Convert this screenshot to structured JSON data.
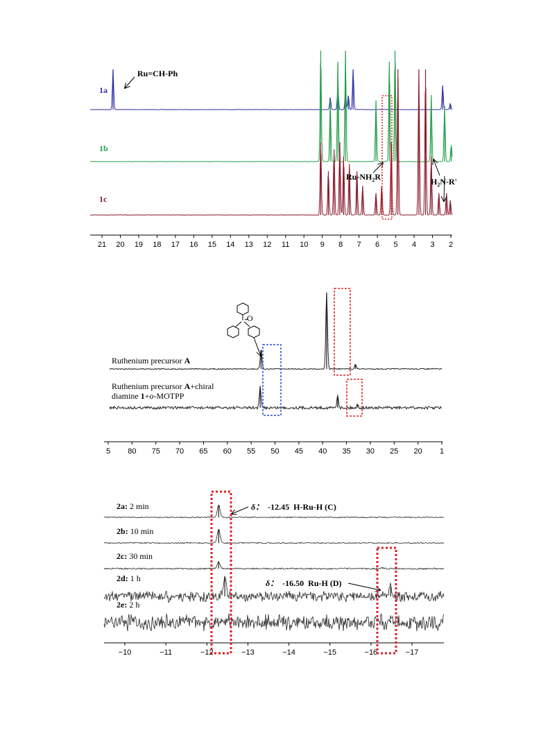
{
  "chart_data": [
    {
      "type": "line",
      "xlim": [
        21,
        2
      ],
      "ticks": [
        "21",
        "20",
        "19",
        "18",
        "17",
        "16",
        "15",
        "14",
        "13",
        "12",
        "11",
        "10",
        "9",
        "8",
        "7",
        "6",
        "5",
        "4",
        "3",
        "2"
      ],
      "series": [
        {
          "name": "1a",
          "color": "#2e31a6",
          "peaks": [
            [
              19.8,
              1.0
            ],
            [
              8.4,
              0.3
            ],
            [
              8.0,
              0.55
            ],
            [
              7.6,
              0.45
            ],
            [
              7.45,
              0.35
            ],
            [
              7.2,
              1.0
            ],
            [
              2.5,
              0.6
            ],
            [
              2.1,
              0.15
            ]
          ]
        },
        {
          "name": "1b",
          "color": "#24a04a",
          "peaks": [
            [
              8.9,
              1.0
            ],
            [
              8.4,
              0.55
            ],
            [
              8.0,
              0.9
            ],
            [
              7.6,
              1.0
            ],
            [
              6.0,
              0.55
            ],
            [
              5.3,
              0.9
            ],
            [
              5.0,
              1.0
            ],
            [
              3.1,
              0.6
            ],
            [
              2.4,
              0.5
            ],
            [
              2.05,
              0.15
            ]
          ]
        },
        {
          "name": "1c",
          "color": "#8b1a2a",
          "peaks": [
            [
              8.9,
              0.5
            ],
            [
              8.5,
              0.3
            ],
            [
              8.2,
              0.45
            ],
            [
              7.9,
              0.5
            ],
            [
              7.7,
              0.4
            ],
            [
              7.4,
              0.35
            ],
            [
              7.0,
              0.3
            ],
            [
              6.7,
              0.2
            ],
            [
              6.0,
              0.15
            ],
            [
              5.7,
              0.2
            ],
            [
              5.2,
              0.5
            ],
            [
              4.85,
              1.0
            ],
            [
              3.75,
              1.0
            ],
            [
              3.4,
              1.0
            ],
            [
              3.1,
              0.4
            ],
            [
              2.7,
              0.15
            ],
            [
              2.3,
              0.15
            ],
            [
              2.1,
              0.1
            ]
          ]
        }
      ],
      "annotations": {
        "a1": "Ru=CH-Ph",
        "a2_main": "Ru-NH",
        "a2_sub": "2",
        "a2_end": "R'",
        "a3_main": "H",
        "a3_sub": "2",
        "a3_end": "N-R'"
      }
    },
    {
      "type": "line",
      "xlim": [
        85,
        10
      ],
      "ticks": [
        "5",
        "80",
        "75",
        "70",
        "65",
        "60",
        "55",
        "50",
        "45",
        "40",
        "35",
        "30",
        "25",
        "20",
        "1"
      ],
      "series": [
        {
          "name": "Ruthenium precursor A",
          "color": "#222222",
          "peaks": [
            [
              50.8,
              0.25
            ],
            [
              36.0,
              1.0
            ],
            [
              29.5,
              0.06
            ]
          ]
        },
        {
          "name": "Ruthenium precursor A+chiral diamine 1+o-MOTPP",
          "color": "#222222",
          "peaks": [
            [
              51.0,
              0.4
            ],
            [
              33.5,
              0.25
            ],
            [
              29.0,
              0.06
            ]
          ]
        }
      ],
      "labels": {
        "top_pre": "Ruthenium precursor ",
        "top_bold": "A",
        "bot_pre": "Ruthenium precursor ",
        "bot_bold1": "A",
        "bot_mid": "+chiral",
        "bot2_pre": "diamine ",
        "bot2_bold": "1",
        "bot2_mid": "+",
        "bot2_ital": "o",
        "bot2_end": "-MOTPP",
        "struct_atom": "O"
      }
    },
    {
      "type": "line",
      "xlim": [
        -9.5,
        -17.8
      ],
      "ticks": [
        "−10",
        "−11",
        "−12",
        "−13",
        "−14",
        "−15",
        "−16",
        "−17"
      ],
      "series": [
        {
          "name": "2a",
          "time": "2 min",
          "color": "#222222",
          "peaks": [
            [
              -12.3,
              1.0
            ]
          ]
        },
        {
          "name": "2b",
          "time": "10 min",
          "color": "#222222",
          "peaks": [
            [
              -12.3,
              1.0
            ]
          ]
        },
        {
          "name": "2c",
          "time": "30 min",
          "color": "#222222",
          "peaks": [
            [
              -12.3,
              0.7
            ],
            [
              -16.3,
              0.1
            ]
          ]
        },
        {
          "name": "2d",
          "time": "1 h",
          "color": "#222222",
          "peaks": [
            [
              -12.45,
              1.0
            ],
            [
              -16.5,
              0.5
            ]
          ]
        },
        {
          "name": "2e",
          "time": "2 h",
          "color": "#222222",
          "peaks": [
            [
              -12.45,
              0.3
            ],
            [
              -16.5,
              0.2
            ]
          ]
        }
      ],
      "annotations": {
        "c_delta": "δ：",
        "c_val": "-12.45",
        "c_lbl": "H-Ru-H (C)",
        "d_delta": "δ：",
        "d_val": "-16.50",
        "d_lbl": "Ru-H (D)"
      }
    }
  ]
}
